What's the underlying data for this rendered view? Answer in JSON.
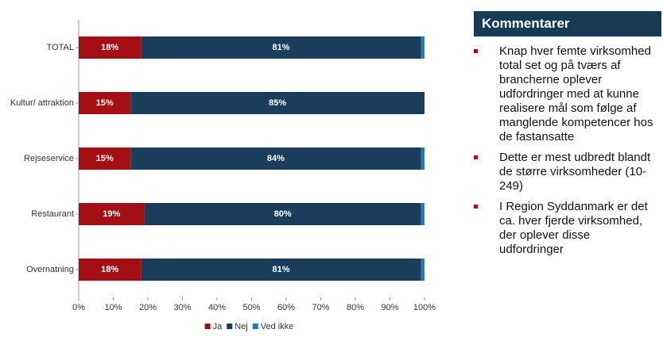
{
  "chart_data": {
    "type": "stacked-bar-horizontal",
    "categories": [
      "TOTAL",
      "Kultur/ attraktion",
      "Rejseservice",
      "Restaurant",
      "Overnatning"
    ],
    "series": [
      {
        "name": "Ja",
        "color": "#a30f12",
        "values": [
          18,
          15,
          15,
          19,
          18
        ],
        "value_labels": [
          "18%",
          "15%",
          "15%",
          "19%",
          "18%"
        ]
      },
      {
        "name": "Nej",
        "color": "#1b3d5c",
        "values": [
          81,
          85,
          84,
          80,
          81
        ],
        "value_labels": [
          "81%",
          "85%",
          "84%",
          "80%",
          "81%"
        ]
      },
      {
        "name": "Ved ikke",
        "color": "#1f7bb8",
        "values": [
          1,
          0,
          1,
          1,
          1
        ]
      }
    ],
    "xlim": [
      0,
      100
    ],
    "xticks": [
      {
        "value": 0,
        "label": "0%"
      },
      {
        "value": 10,
        "label": "10%"
      },
      {
        "value": 20,
        "label": "20%"
      },
      {
        "value": 30,
        "label": "30%"
      },
      {
        "value": 40,
        "label": "40%"
      },
      {
        "value": 50,
        "label": "50%"
      },
      {
        "value": 60,
        "label": "60%"
      },
      {
        "value": 70,
        "label": "70%"
      },
      {
        "value": 80,
        "label": "80%"
      },
      {
        "value": 90,
        "label": "90%"
      },
      {
        "value": 100,
        "label": "100%"
      }
    ],
    "legend": "bottom"
  },
  "comments": {
    "title": "Kommentarer",
    "items": [
      "Knap hver femte virksomhed total set og på tværs af brancherne oplever udfordringer med at kunne realisere mål som følge af manglende kompetencer hos de fastansatte",
      "Dette er mest udbredt blandt de større virksomheder (10-249)",
      "I Region Syddanmark er det ca. hver fjerde virksomhed, der oplever disse udfordringer"
    ]
  }
}
